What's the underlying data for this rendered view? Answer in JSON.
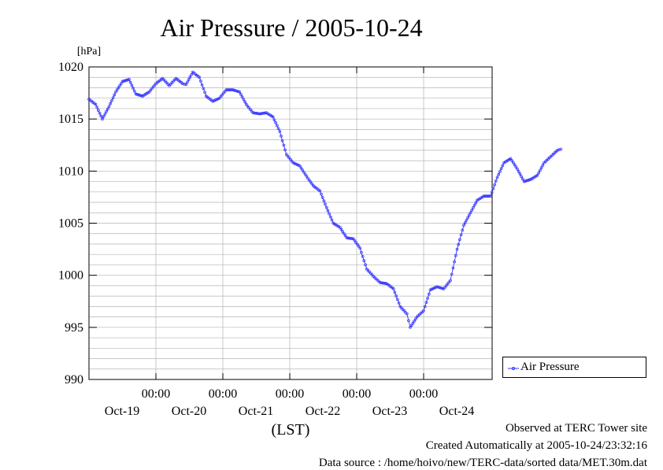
{
  "chart_data": {
    "type": "line",
    "title": "Air Pressure / 2005-10-24",
    "ylabel_unit": "[hPa]",
    "xlabel": "(LST)",
    "ylim": [
      990,
      1020
    ],
    "y_ticks": [
      "1020",
      "1015",
      "1010",
      "1005",
      "1000",
      "995",
      "990"
    ],
    "x_time_ticks": [
      "00:00",
      "00:00",
      "00:00",
      "00:00",
      "00:00"
    ],
    "x_date_labels": [
      "Oct-19",
      "Oct-20",
      "Oct-21",
      "Oct-22",
      "Oct-23",
      "Oct-24"
    ],
    "grid": true,
    "legend_position": "right",
    "series": [
      {
        "name": "Air Pressure",
        "color": "#3333ff",
        "points": [
          [
            -1.0,
            1016.9
          ],
          [
            -0.9,
            1016.4
          ],
          [
            -0.8,
            1015.0
          ],
          [
            -0.7,
            1016.2
          ],
          [
            -0.6,
            1017.6
          ],
          [
            -0.5,
            1018.6
          ],
          [
            -0.4,
            1018.8
          ],
          [
            -0.3,
            1017.4
          ],
          [
            -0.2,
            1017.2
          ],
          [
            -0.1,
            1017.6
          ],
          [
            0.0,
            1018.4
          ],
          [
            0.1,
            1018.9
          ],
          [
            0.2,
            1018.2
          ],
          [
            0.3,
            1018.9
          ],
          [
            0.4,
            1018.4
          ],
          [
            0.45,
            1018.3
          ],
          [
            0.55,
            1019.5
          ],
          [
            0.65,
            1019.0
          ],
          [
            0.75,
            1017.2
          ],
          [
            0.85,
            1016.7
          ],
          [
            0.95,
            1017.0
          ],
          [
            1.05,
            1017.8
          ],
          [
            1.15,
            1017.8
          ],
          [
            1.25,
            1017.6
          ],
          [
            1.35,
            1016.4
          ],
          [
            1.45,
            1015.6
          ],
          [
            1.55,
            1015.5
          ],
          [
            1.65,
            1015.6
          ],
          [
            1.75,
            1015.2
          ],
          [
            1.85,
            1013.8
          ],
          [
            1.95,
            1011.6
          ],
          [
            2.05,
            1010.8
          ],
          [
            2.15,
            1010.5
          ],
          [
            2.25,
            1009.5
          ],
          [
            2.35,
            1008.6
          ],
          [
            2.45,
            1008.1
          ],
          [
            2.55,
            1006.5
          ],
          [
            2.65,
            1005.0
          ],
          [
            2.75,
            1004.6
          ],
          [
            2.85,
            1003.6
          ],
          [
            2.95,
            1003.5
          ],
          [
            3.05,
            1002.6
          ],
          [
            3.15,
            1000.6
          ],
          [
            3.25,
            999.9
          ],
          [
            3.35,
            999.3
          ],
          [
            3.45,
            999.2
          ],
          [
            3.55,
            998.7
          ],
          [
            3.65,
            997.0
          ],
          [
            3.75,
            996.3
          ],
          [
            3.8,
            995.0
          ],
          [
            3.9,
            996.0
          ],
          [
            4.0,
            996.6
          ],
          [
            4.1,
            998.6
          ],
          [
            4.2,
            998.9
          ],
          [
            4.3,
            998.7
          ],
          [
            4.4,
            999.5
          ],
          [
            4.5,
            1002.5
          ],
          [
            4.6,
            1004.8
          ],
          [
            4.7,
            1006.0
          ],
          [
            4.8,
            1007.2
          ],
          [
            4.9,
            1007.6
          ],
          [
            5.0,
            1007.6
          ],
          [
            5.1,
            1009.4
          ],
          [
            5.2,
            1010.8
          ],
          [
            5.3,
            1011.2
          ],
          [
            5.4,
            1010.2
          ],
          [
            5.5,
            1009.0
          ],
          [
            5.6,
            1009.2
          ],
          [
            5.7,
            1009.6
          ],
          [
            5.8,
            1010.8
          ],
          [
            5.9,
            1011.4
          ],
          [
            6.0,
            1012.0
          ],
          [
            6.05,
            1012.1
          ]
        ]
      }
    ]
  },
  "legend": {
    "label": "Air Pressure"
  },
  "footer": {
    "line1": "Observed at TERC Tower site",
    "line2": "Created Automatically at 2005-10-24/23:32:16",
    "line3": "Data source : /home/hoivo/new/TERC-data/sorted  data/MET.30m.dat"
  }
}
